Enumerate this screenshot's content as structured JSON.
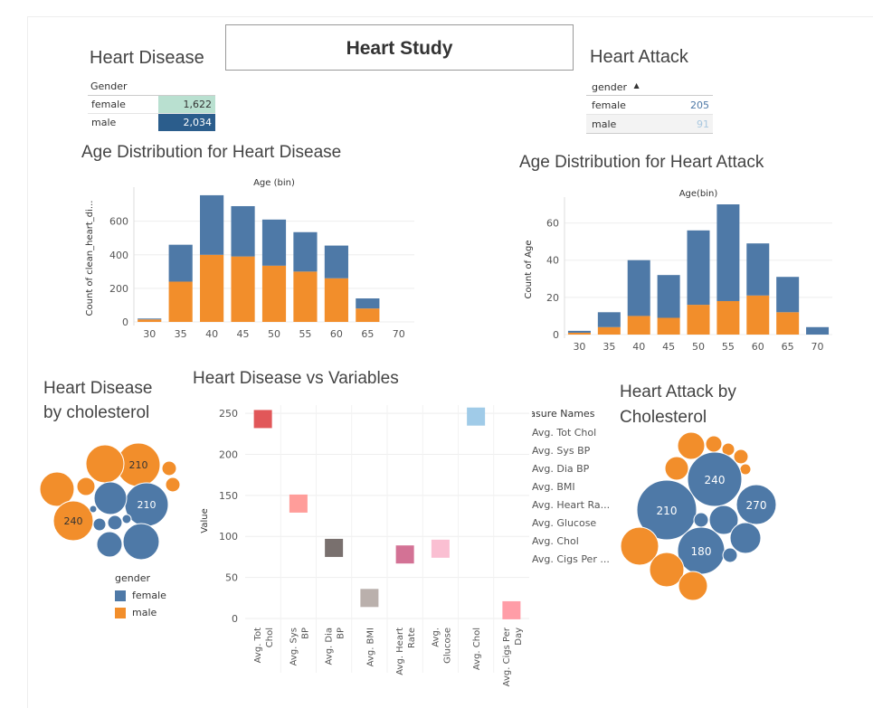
{
  "dashboard": {
    "title": "Heart Study"
  },
  "heart_disease": {
    "title": "Heart Disease",
    "column_header": "Gender",
    "rows": [
      {
        "label": "female",
        "value": "1,622",
        "color": "#b9e0d0"
      },
      {
        "label": "male",
        "value": "2,034",
        "color": "#2b5d8c"
      }
    ]
  },
  "heart_attack": {
    "title": "Heart Attack",
    "column_header": "gender",
    "rows": [
      {
        "label": "female",
        "value": "205",
        "color": "#4e79a7"
      },
      {
        "label": "male",
        "value": "91",
        "color": "#a9c8e0"
      }
    ]
  },
  "colors": {
    "female": "#4e79a7",
    "male": "#f28e2b",
    "grid": "#eeeeee",
    "axis": "#666666"
  },
  "chart_data": [
    {
      "id": "age-dist-disease",
      "type": "bar",
      "stacked": true,
      "title": "Age Distribution for Heart Disease",
      "xlabel": "Age (bin)",
      "ylabel": "Count of clean_heart_di...",
      "categories": [
        "30",
        "35",
        "40",
        "45",
        "50",
        "55",
        "60",
        "65",
        "70"
      ],
      "ylim": [
        0,
        760
      ],
      "yticks": [
        0,
        200,
        400,
        600
      ],
      "series": [
        {
          "name": "male",
          "color": "#f28e2b",
          "values": [
            15,
            240,
            400,
            390,
            335,
            300,
            260,
            80,
            0
          ]
        },
        {
          "name": "female",
          "color": "#4e79a7",
          "values": [
            5,
            220,
            355,
            300,
            275,
            235,
            195,
            60,
            0
          ]
        }
      ]
    },
    {
      "id": "age-dist-attack",
      "type": "bar",
      "stacked": true,
      "title": "Age Distribution for Heart Attack",
      "xlabel": "Age(bin)",
      "ylabel": "Count of Age",
      "categories": [
        "30",
        "35",
        "40",
        "45",
        "50",
        "55",
        "60",
        "65",
        "70"
      ],
      "ylim": [
        0,
        70
      ],
      "yticks": [
        0,
        20,
        40,
        60
      ],
      "series": [
        {
          "name": "male",
          "color": "#f28e2b",
          "values": [
            1,
            4,
            10,
            9,
            16,
            18,
            21,
            12,
            0
          ]
        },
        {
          "name": "female",
          "color": "#4e79a7",
          "values": [
            1,
            8,
            30,
            23,
            40,
            52,
            28,
            19,
            4
          ]
        }
      ]
    },
    {
      "id": "disease-vs-variables",
      "type": "scatter",
      "title": "Heart Disease vs Variables",
      "ylabel": "Value",
      "categories": [
        "Avg. Tot Chol",
        "Avg. Sys BP",
        "Avg. Dia BP",
        "Avg. BMI",
        "Avg. Heart Rate",
        "Avg. Glucose",
        "Avg. Chol",
        "Avg. Cigs Per Day"
      ],
      "values": [
        243,
        140,
        86,
        25,
        78,
        85,
        246,
        10
      ],
      "colors": [
        "#e15759",
        "#ff9d9a",
        "#79706e",
        "#bab0ac",
        "#d37295",
        "#fabfd2",
        "#a0cbe8",
        "#ff9da7"
      ],
      "ylim": [
        0,
        260
      ],
      "yticks": [
        0,
        50,
        100,
        150,
        200,
        250
      ],
      "legend_title": "Measure Names",
      "legend_items": [
        "Avg. Tot Chol",
        "Avg. Sys BP",
        "Avg. Dia BP",
        "Avg. BMI",
        "Avg. Heart Ra...",
        "Avg. Glucose",
        "Avg. Chol",
        "Avg. Cigs Per ..."
      ]
    },
    {
      "id": "disease-by-chol",
      "type": "bubble",
      "title": "Heart Disease by cholesterol",
      "legend_title": "gender",
      "legend_items": [
        {
          "label": "female",
          "color": "#4e79a7"
        },
        {
          "label": "male",
          "color": "#f28e2b"
        }
      ],
      "labels": [
        "210",
        "210",
        "240"
      ]
    },
    {
      "id": "attack-by-chol",
      "type": "bubble",
      "title": "Heart Attack by Cholesterol",
      "labels": [
        "240",
        "210",
        "270",
        "180"
      ]
    }
  ]
}
